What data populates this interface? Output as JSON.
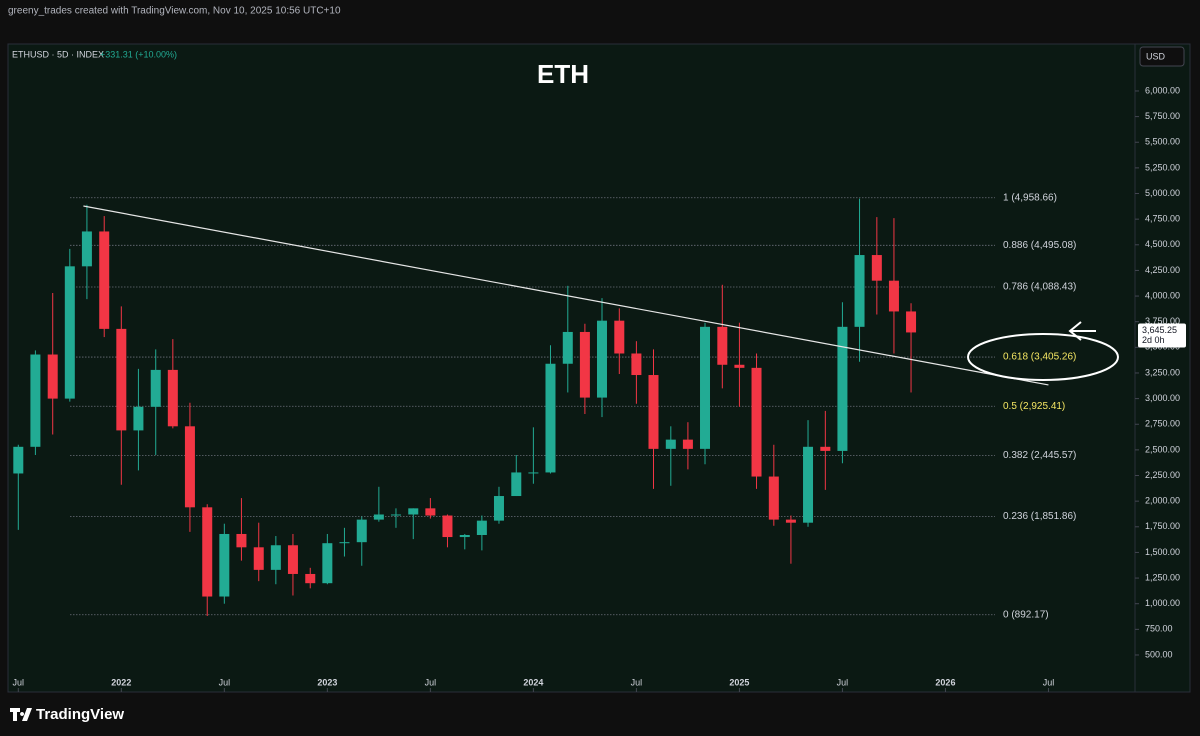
{
  "chart_data": {
    "type": "candlestick",
    "title": "ETH",
    "credit": "greeny_trades created with TradingView.com, Nov 10, 2025 10:56 UTC+10",
    "symbol": "ETHUSD · 5D · INDEX",
    "change": "+331.31 (+10.00%)",
    "currency": "USD",
    "brand": "TradingView",
    "countdown": "2d 0h",
    "last_price": {
      "value": 3645.25,
      "label": "3,645.25"
    },
    "up_color": "#22ab94",
    "down_color": "#f23645",
    "x": [
      2021.5,
      2021.583,
      2021.667,
      2021.75,
      2021.833,
      2021.917,
      2022.0,
      2022.083,
      2022.167,
      2022.25,
      2022.333,
      2022.417,
      2022.5,
      2022.583,
      2022.667,
      2022.75,
      2022.833,
      2022.917,
      2023.0,
      2023.083,
      2023.167,
      2023.25,
      2023.333,
      2023.417,
      2023.5,
      2023.583,
      2023.667,
      2023.75,
      2023.833,
      2023.917,
      2024.0,
      2024.083,
      2024.167,
      2024.25,
      2024.333,
      2024.417,
      2024.5,
      2024.583,
      2024.667,
      2024.75,
      2024.833,
      2024.917,
      2025.0,
      2025.083,
      2025.167,
      2025.25,
      2025.333,
      2025.417,
      2025.5,
      2025.583,
      2025.667,
      2025.75,
      2025.833
    ],
    "open": [
      2270,
      2530,
      3430,
      3000,
      4290,
      4630,
      3680,
      2690,
      2920,
      3280,
      2730,
      1940,
      1070,
      1680,
      1550,
      1330,
      1570,
      1290,
      1200,
      1590,
      1600,
      1820,
      1870,
      1870,
      1930,
      1860,
      1650,
      1670,
      1810,
      2050,
      2280,
      2280,
      3340,
      3650,
      3010,
      3760,
      3440,
      3230,
      2510,
      2600,
      2510,
      3700,
      3330,
      3300,
      2240,
      1820,
      1790,
      2530,
      2490,
      3700,
      4400,
      4150,
      3850
    ],
    "high": [
      2550,
      3470,
      4030,
      4460,
      4890,
      4780,
      3900,
      3290,
      3480,
      3580,
      2960,
      1970,
      1780,
      2030,
      1790,
      1660,
      1680,
      1350,
      1680,
      1740,
      1850,
      2140,
      1930,
      1930,
      2030,
      1870,
      1680,
      1860,
      2140,
      2450,
      2720,
      3520,
      4100,
      3730,
      3980,
      3880,
      3560,
      3480,
      2730,
      2770,
      3740,
      4110,
      3740,
      3440,
      2550,
      1860,
      2790,
      2880,
      3940,
      4950,
      4770,
      4760,
      3930
    ],
    "low": [
      1720,
      2450,
      2650,
      2970,
      3970,
      3600,
      2160,
      2300,
      2450,
      2710,
      1700,
      880,
      1000,
      1420,
      1220,
      1190,
      1080,
      1150,
      1190,
      1460,
      1370,
      1800,
      1740,
      1630,
      1830,
      1550,
      1530,
      1520,
      1780,
      2050,
      2170,
      2270,
      3060,
      2850,
      2820,
      3240,
      2950,
      2120,
      2150,
      2310,
      2360,
      3100,
      2920,
      2120,
      1760,
      1390,
      1750,
      2110,
      2370,
      3360,
      3820,
      3440,
      3060
    ],
    "close": [
      2530,
      3430,
      3000,
      4290,
      4630,
      3680,
      2690,
      2920,
      3280,
      2730,
      1940,
      1070,
      1680,
      1550,
      1330,
      1570,
      1290,
      1200,
      1590,
      1600,
      1820,
      1870,
      1870,
      1930,
      1860,
      1650,
      1670,
      1810,
      2050,
      2280,
      2280,
      3340,
      3650,
      3010,
      3760,
      3440,
      3230,
      2510,
      2600,
      2510,
      3700,
      3330,
      3300,
      2240,
      1820,
      1790,
      2530,
      2490,
      3700,
      4400,
      4150,
      3850,
      3645.25
    ],
    "xlim": [
      2021.45,
      2026.92
    ],
    "xticks": [
      {
        "value": 2021.5,
        "label": "Jul"
      },
      2022,
      {
        "value": 2022.5,
        "label": "Jul"
      },
      2023,
      {
        "value": 2023.5,
        "label": "Jul"
      },
      2024,
      {
        "value": 2024.5,
        "label": "Jul"
      },
      2025,
      {
        "value": 2025.5,
        "label": "Jul"
      },
      2026,
      {
        "value": 2026.5,
        "label": "Jul"
      }
    ],
    "ylim": [
      139,
      6458
    ],
    "yticks": [
      {
        "value": 500,
        "label": "500.00"
      },
      {
        "value": 750,
        "label": "750.00"
      },
      {
        "value": 1000,
        "label": "1,000.00"
      },
      {
        "value": 1250,
        "label": "1,250.00"
      },
      {
        "value": 1500,
        "label": "1,500.00"
      },
      {
        "value": 1750,
        "label": "1,750.00"
      },
      {
        "value": 2000,
        "label": "2,000.00"
      },
      {
        "value": 2250,
        "label": "2,250.00"
      },
      {
        "value": 2500,
        "label": "2,500.00"
      },
      {
        "value": 2750,
        "label": "2,750.00"
      },
      {
        "value": 3000,
        "label": "3,000.00"
      },
      {
        "value": 3250,
        "label": "3,250.00"
      },
      {
        "value": 3500,
        "label": "3,500.00"
      },
      {
        "value": 3750,
        "label": "3,750.00"
      },
      {
        "value": 4000,
        "label": "4,000.00"
      },
      {
        "value": 4250,
        "label": "4,250.00"
      },
      {
        "value": 4500,
        "label": "4,500.00"
      },
      {
        "value": 4750,
        "label": "4,750.00"
      },
      {
        "value": 5000,
        "label": "5,000.00"
      },
      {
        "value": 5250,
        "label": "5,250.00"
      },
      {
        "value": 5500,
        "label": "5,500.00"
      },
      {
        "value": 5750,
        "label": "5,750.00"
      },
      {
        "value": 6000,
        "label": "6,000.00"
      }
    ],
    "fib_levels": [
      {
        "value": 4958.66,
        "label": "1 (4,958.66)",
        "color": "#d1d4dc"
      },
      {
        "value": 4495.08,
        "label": "0.886 (4,495.08)",
        "color": "#d1d4dc"
      },
      {
        "value": 4088.43,
        "label": "0.786 (4,088.43)",
        "color": "#d1d4dc"
      },
      {
        "value": 3405.26,
        "label": "0.618 (3,405.26)",
        "color": "#f5e663"
      },
      {
        "value": 2925.41,
        "label": "0.5 (2,925.41)",
        "color": "#f5e663"
      },
      {
        "value": 2445.57,
        "label": "0.382 (2,445.57)",
        "color": "#d1d4dc"
      },
      {
        "value": 1851.86,
        "label": "0.236 (1,851.86)",
        "color": "#d1d4dc"
      },
      {
        "value": 892.17,
        "label": "0 (892.17)",
        "color": "#d1d4dc"
      }
    ],
    "trendline": {
      "x": [
        2021.816,
        2026.5
      ],
      "y": [
        4878,
        3133
      ],
      "color": "#e6e6e6"
    }
  }
}
